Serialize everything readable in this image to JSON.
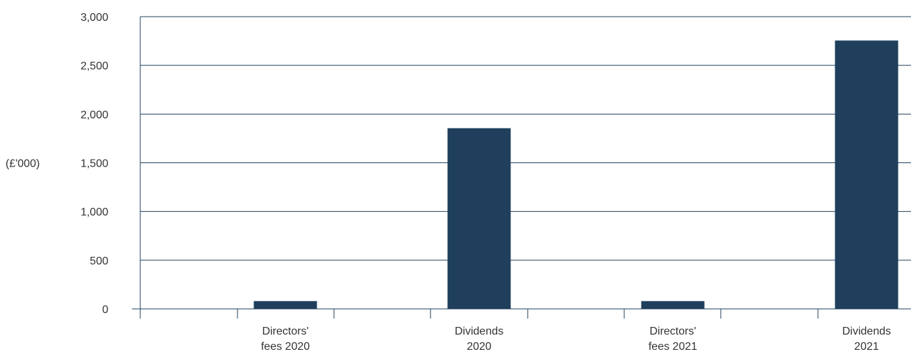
{
  "chart_data": {
    "type": "bar",
    "title": "",
    "xlabel": "",
    "ylabel": "(£'000)",
    "categories": [
      [
        "Directors'",
        "fees 2020"
      ],
      [
        "Dividends",
        "2020"
      ],
      [
        "Directors'",
        "fees 2021"
      ],
      [
        "Dividends",
        "2021"
      ]
    ],
    "values": [
      80,
      1855,
      80,
      2755
    ],
    "ylim": [
      0,
      3000
    ],
    "yticks": [
      0,
      500,
      1000,
      1500,
      2000,
      2500,
      3000
    ],
    "ytick_labels": [
      "0",
      "500",
      "1,000",
      "1,500",
      "2,000",
      "2,500",
      "3,000"
    ],
    "grid": true,
    "legend": "none",
    "colors": {
      "bar": "#1f3f5c",
      "grid": "#1f3f5c",
      "text": "#333333"
    }
  }
}
